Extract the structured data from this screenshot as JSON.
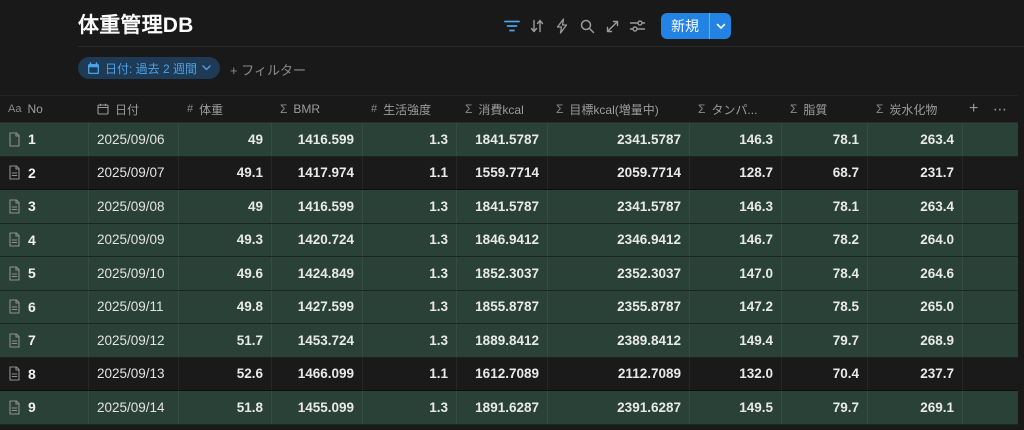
{
  "page": {
    "title": "体重管理DB"
  },
  "toolbar": {
    "icons": [
      {
        "name": "filter-icon",
        "active": true,
        "color": "#4ba3e3"
      },
      {
        "name": "sort-icon",
        "active": false
      },
      {
        "name": "automation-icon",
        "active": false
      },
      {
        "name": "search-icon",
        "active": false
      },
      {
        "name": "expand-icon",
        "active": false
      },
      {
        "name": "view-settings-icon",
        "active": false
      }
    ],
    "new_button_label": "新規"
  },
  "filter_bar": {
    "chip_label": "日付: 過去 2 週間",
    "add_filter_label": "+ フィルター"
  },
  "table": {
    "columns": [
      {
        "icon": "aa",
        "label": "No"
      },
      {
        "icon": "calendar",
        "label": "日付"
      },
      {
        "icon": "hash",
        "label": "体重"
      },
      {
        "icon": "sigma",
        "label": "BMR"
      },
      {
        "icon": "hash",
        "label": "生活強度"
      },
      {
        "icon": "sigma",
        "label": "消費kcal"
      },
      {
        "icon": "sigma",
        "label": "目標kcal(増量中)"
      },
      {
        "icon": "sigma",
        "label": "タンパ..."
      },
      {
        "icon": "sigma",
        "label": "脂質"
      },
      {
        "icon": "sigma",
        "label": "炭水化物"
      }
    ],
    "add_column_label": "+",
    "more_options_label": "⋯",
    "rows": [
      {
        "no": "1",
        "icon": "page-blank",
        "date": "2025/09/06",
        "values": [
          "49",
          "1416.599",
          "1.3",
          "1841.5787",
          "2341.5787",
          "146.3",
          "78.1",
          "263.4"
        ],
        "highlighted": true
      },
      {
        "no": "2",
        "icon": "page-lines",
        "date": "2025/09/07",
        "values": [
          "49.1",
          "1417.974",
          "1.1",
          "1559.7714",
          "2059.7714",
          "128.7",
          "68.7",
          "231.7"
        ],
        "highlighted": false
      },
      {
        "no": "3",
        "icon": "page-lines",
        "date": "2025/09/08",
        "values": [
          "49",
          "1416.599",
          "1.3",
          "1841.5787",
          "2341.5787",
          "146.3",
          "78.1",
          "263.4"
        ],
        "highlighted": true
      },
      {
        "no": "4",
        "icon": "page-lines",
        "date": "2025/09/09",
        "values": [
          "49.3",
          "1420.724",
          "1.3",
          "1846.9412",
          "2346.9412",
          "146.7",
          "78.2",
          "264.0"
        ],
        "highlighted": true
      },
      {
        "no": "5",
        "icon": "page-lines",
        "date": "2025/09/10",
        "values": [
          "49.6",
          "1424.849",
          "1.3",
          "1852.3037",
          "2352.3037",
          "147.0",
          "78.4",
          "264.6"
        ],
        "highlighted": true
      },
      {
        "no": "6",
        "icon": "page-lines",
        "date": "2025/09/11",
        "values": [
          "49.8",
          "1427.599",
          "1.3",
          "1855.8787",
          "2355.8787",
          "147.2",
          "78.5",
          "265.0"
        ],
        "highlighted": true
      },
      {
        "no": "7",
        "icon": "page-lines",
        "date": "2025/09/12",
        "values": [
          "51.7",
          "1453.724",
          "1.3",
          "1889.8412",
          "2389.8412",
          "149.4",
          "79.7",
          "268.9"
        ],
        "highlighted": true
      },
      {
        "no": "8",
        "icon": "page-lines",
        "date": "2025/09/13",
        "values": [
          "52.6",
          "1466.099",
          "1.1",
          "1612.7089",
          "2112.7089",
          "132.0",
          "70.4",
          "237.7"
        ],
        "highlighted": false
      },
      {
        "no": "9",
        "icon": "page-lines",
        "date": "2025/09/14",
        "values": [
          "51.8",
          "1455.099",
          "1.3",
          "1891.6287",
          "2391.6287",
          "149.5",
          "79.7",
          "269.1"
        ],
        "highlighted": true
      }
    ]
  },
  "colors": {
    "accent_blue": "#2383e2",
    "link_blue": "#4ba3e3",
    "row_highlight_green": "#294137",
    "background": "#191919"
  }
}
